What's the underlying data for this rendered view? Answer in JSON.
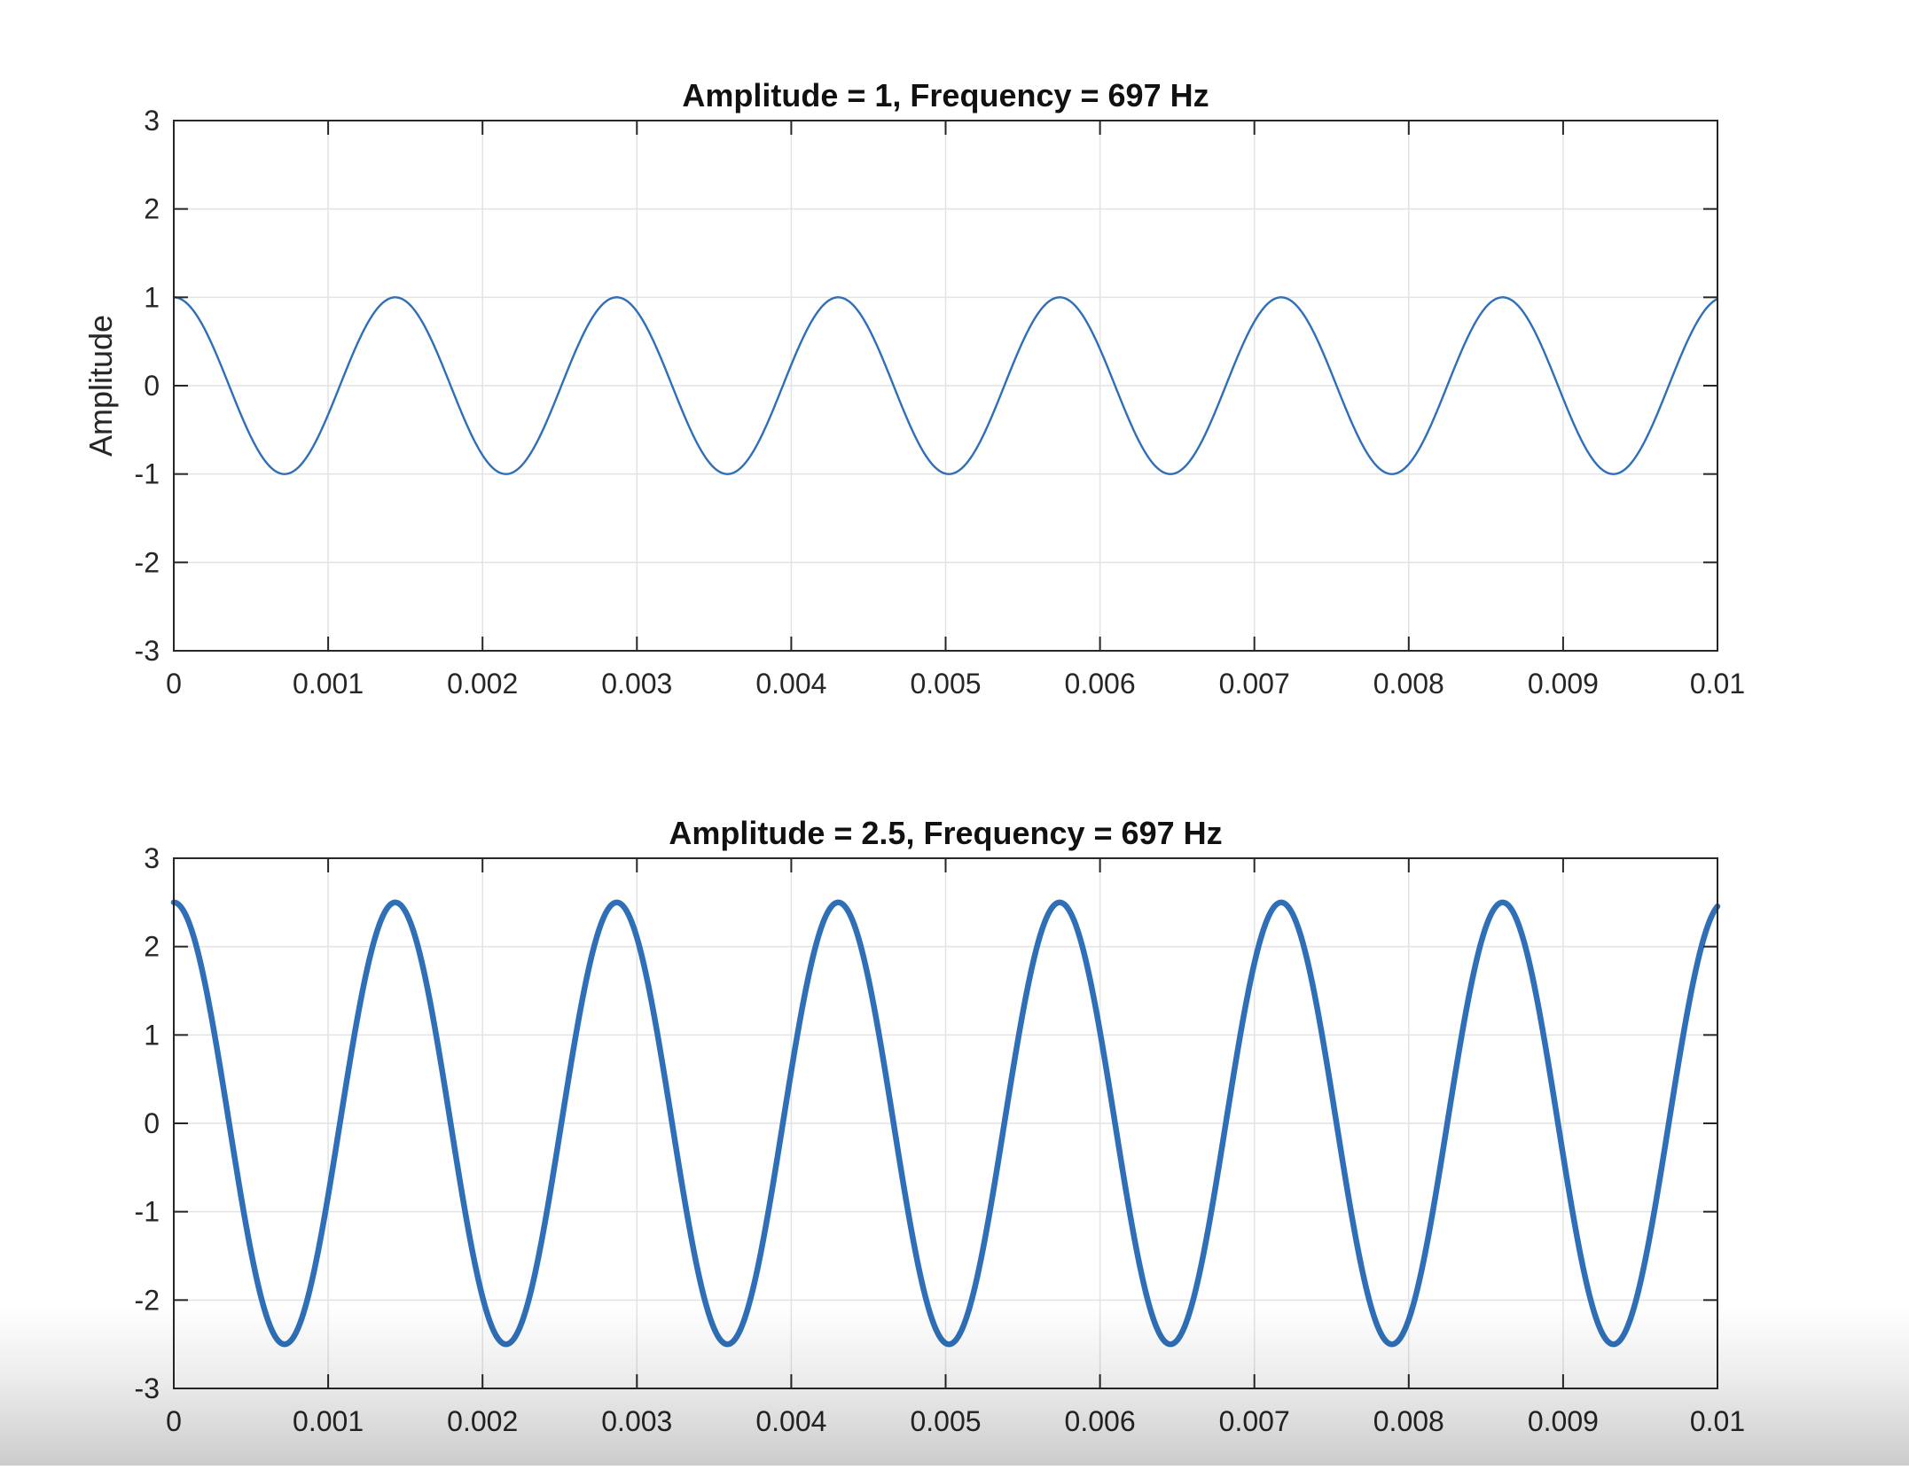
{
  "colors": {
    "curve": "#2f6fb8",
    "grid": "#e3e3e3",
    "axis": "#262626",
    "background": "#ffffff"
  },
  "chart_data": [
    {
      "type": "line",
      "title": "Amplitude = 1, Frequency = 697 Hz",
      "xlabel": "",
      "ylabel": "Amplitude",
      "xlim": [
        0,
        0.01
      ],
      "ylim": [
        -3,
        3
      ],
      "x_ticks": [
        "0",
        "0.001",
        "0.002",
        "0.003",
        "0.004",
        "0.005",
        "0.006",
        "0.007",
        "0.008",
        "0.009",
        "0.01"
      ],
      "y_ticks": [
        "-3",
        "-2",
        "-1",
        "0",
        "1",
        "2",
        "3"
      ],
      "grid": true,
      "series": [
        {
          "function": "cosine",
          "amplitude": 1,
          "frequency_hz": 697,
          "x_start": 0,
          "x_end": 0.01
        }
      ]
    },
    {
      "type": "line",
      "title": "Amplitude = 2.5, Frequency = 697 Hz",
      "xlabel": "",
      "ylabel": "",
      "xlim": [
        0,
        0.01
      ],
      "ylim": [
        -3,
        3
      ],
      "x_ticks": [
        "0",
        "0.001",
        "0.002",
        "0.003",
        "0.004",
        "0.005",
        "0.006",
        "0.007",
        "0.008",
        "0.009",
        "0.01"
      ],
      "y_ticks": [
        "-3",
        "-2",
        "-1",
        "0",
        "1",
        "2",
        "3"
      ],
      "grid": true,
      "series": [
        {
          "function": "cosine",
          "amplitude": 2.5,
          "frequency_hz": 697,
          "x_start": 0,
          "x_end": 0.01
        }
      ]
    }
  ]
}
